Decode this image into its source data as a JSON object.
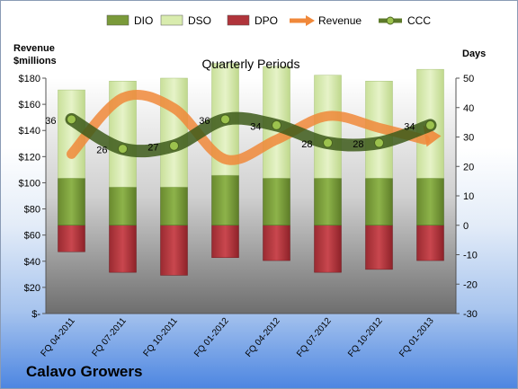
{
  "chart_data": {
    "type": "bar",
    "title": "Quarterly Periods",
    "company": "Calavo Growers",
    "y_left_label_line1": "Revenue",
    "y_left_label_line2": "$millions",
    "y_right_label": "Days",
    "categories": [
      "FQ 04-2011",
      "FQ 07-2011",
      "FQ 10-2011",
      "FQ 01-2012",
      "FQ 04-2012",
      "FQ 07-2012",
      "FQ 10-2012",
      "FQ 01-2013"
    ],
    "left_ticks": [
      "$-",
      "$20",
      "$40",
      "$60",
      "$80",
      "$100",
      "$120",
      "$140",
      "$160",
      "$180"
    ],
    "right_ticks": [
      "-30",
      "-20",
      "-10",
      "0",
      "10",
      "20",
      "30",
      "40",
      "50"
    ],
    "y_left_range": [
      0,
      180
    ],
    "y_right_range": [
      -30,
      50
    ],
    "legend": [
      {
        "label": "DIO",
        "kind": "bar",
        "color": "#7a9a3a"
      },
      {
        "label": "DSO",
        "kind": "bar",
        "color": "#d9ecae"
      },
      {
        "label": "DPO",
        "kind": "bar",
        "color": "#b0343b"
      },
      {
        "label": "Revenue",
        "kind": "arrow",
        "color": "#f0883a"
      },
      {
        "label": "CCC",
        "kind": "line",
        "color": "#5d7a2a"
      }
    ],
    "series": [
      {
        "name": "DIO",
        "axis": "right",
        "values": [
          16,
          13,
          13,
          17,
          16,
          16,
          16,
          16
        ]
      },
      {
        "name": "DSO",
        "axis": "right",
        "values": [
          30,
          36,
          37,
          38,
          38,
          35,
          33,
          37
        ]
      },
      {
        "name": "DPO",
        "axis": "right",
        "values": [
          -9,
          -16,
          -17,
          -11,
          -12,
          -16,
          -15,
          -12
        ]
      },
      {
        "name": "Revenue",
        "axis": "left",
        "values": [
          122,
          165,
          157,
          118,
          133,
          151,
          142,
          133
        ]
      },
      {
        "name": "CCC",
        "axis": "right",
        "values": [
          36,
          26,
          27,
          36,
          34,
          28,
          28,
          34
        ],
        "data_labels": [
          "36",
          "26",
          "27",
          "36",
          "34",
          "28",
          "28",
          "34"
        ]
      }
    ],
    "legend_position": "top",
    "grid": false
  }
}
